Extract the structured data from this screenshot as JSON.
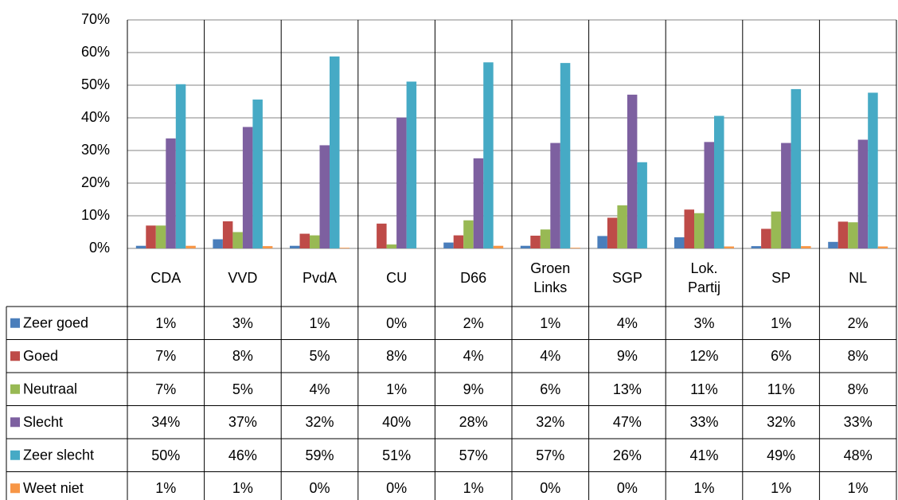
{
  "chart_data": {
    "type": "bar",
    "categories": [
      "CDA",
      "VVD",
      "PvdA",
      "CU",
      "D66",
      "Groen\nLinks",
      "SGP",
      "Lok.\nPartij",
      "SP",
      "NL"
    ],
    "ylim": [
      0,
      70
    ],
    "yticks": [
      {
        "value": 0,
        "label": "0%"
      },
      {
        "value": 10,
        "label": "10%"
      },
      {
        "value": 20,
        "label": "20%"
      },
      {
        "value": 30,
        "label": "30%"
      },
      {
        "value": 40,
        "label": "40%"
      },
      {
        "value": 50,
        "label": "50%"
      },
      {
        "value": 60,
        "label": "60%"
      },
      {
        "value": 70,
        "label": "70%"
      }
    ],
    "grid": true,
    "series": [
      {
        "name": "Zeer goed",
        "color": "#4a7ebb",
        "values": [
          0.8,
          2.8,
          0.8,
          0,
          1.8,
          0.8,
          3.8,
          3.4,
          0.7,
          2
        ],
        "value_labels": [
          "1%",
          "3%",
          "1%",
          "0%",
          "2%",
          "1%",
          "4%",
          "3%",
          "1%",
          "2%"
        ]
      },
      {
        "name": "Goed",
        "color": "#be4b48",
        "values": [
          7,
          8.3,
          4.5,
          7.6,
          4,
          3.9,
          9.4,
          11.9,
          6,
          8.2
        ],
        "value_labels": [
          "7%",
          "8%",
          "5%",
          "8%",
          "4%",
          "4%",
          "9%",
          "12%",
          "6%",
          "8%"
        ]
      },
      {
        "name": "Neutraal",
        "color": "#98b954",
        "values": [
          7,
          5,
          4,
          1.2,
          8.6,
          5.8,
          13.2,
          10.8,
          11.3,
          8
        ],
        "value_labels": [
          "7%",
          "5%",
          "4%",
          "1%",
          "9%",
          "6%",
          "13%",
          "11%",
          "11%",
          "8%"
        ]
      },
      {
        "name": "Slecht",
        "color": "#7d60a0",
        "values": [
          33.7,
          37.2,
          31.6,
          40.1,
          27.6,
          32.3,
          47.1,
          32.6,
          32.3,
          33.3
        ],
        "value_labels": [
          "34%",
          "37%",
          "32%",
          "40%",
          "28%",
          "32%",
          "47%",
          "33%",
          "32%",
          "33%"
        ]
      },
      {
        "name": "Zeer slecht",
        "color": "#46aac5",
        "values": [
          50.3,
          45.6,
          58.8,
          51.1,
          57,
          56.8,
          26.4,
          40.6,
          48.8,
          47.7
        ],
        "value_labels": [
          "50%",
          "46%",
          "59%",
          "51%",
          "57%",
          "57%",
          "26%",
          "41%",
          "49%",
          "48%"
        ]
      },
      {
        "name": "Weet niet",
        "color": "#f79646",
        "values": [
          0.8,
          0.7,
          0.2,
          0,
          0.8,
          0.2,
          0,
          0.6,
          0.7,
          0.6
        ],
        "value_labels": [
          "1%",
          "1%",
          "0%",
          "0%",
          "1%",
          "0%",
          "0%",
          "1%",
          "1%",
          "1%"
        ]
      }
    ]
  }
}
